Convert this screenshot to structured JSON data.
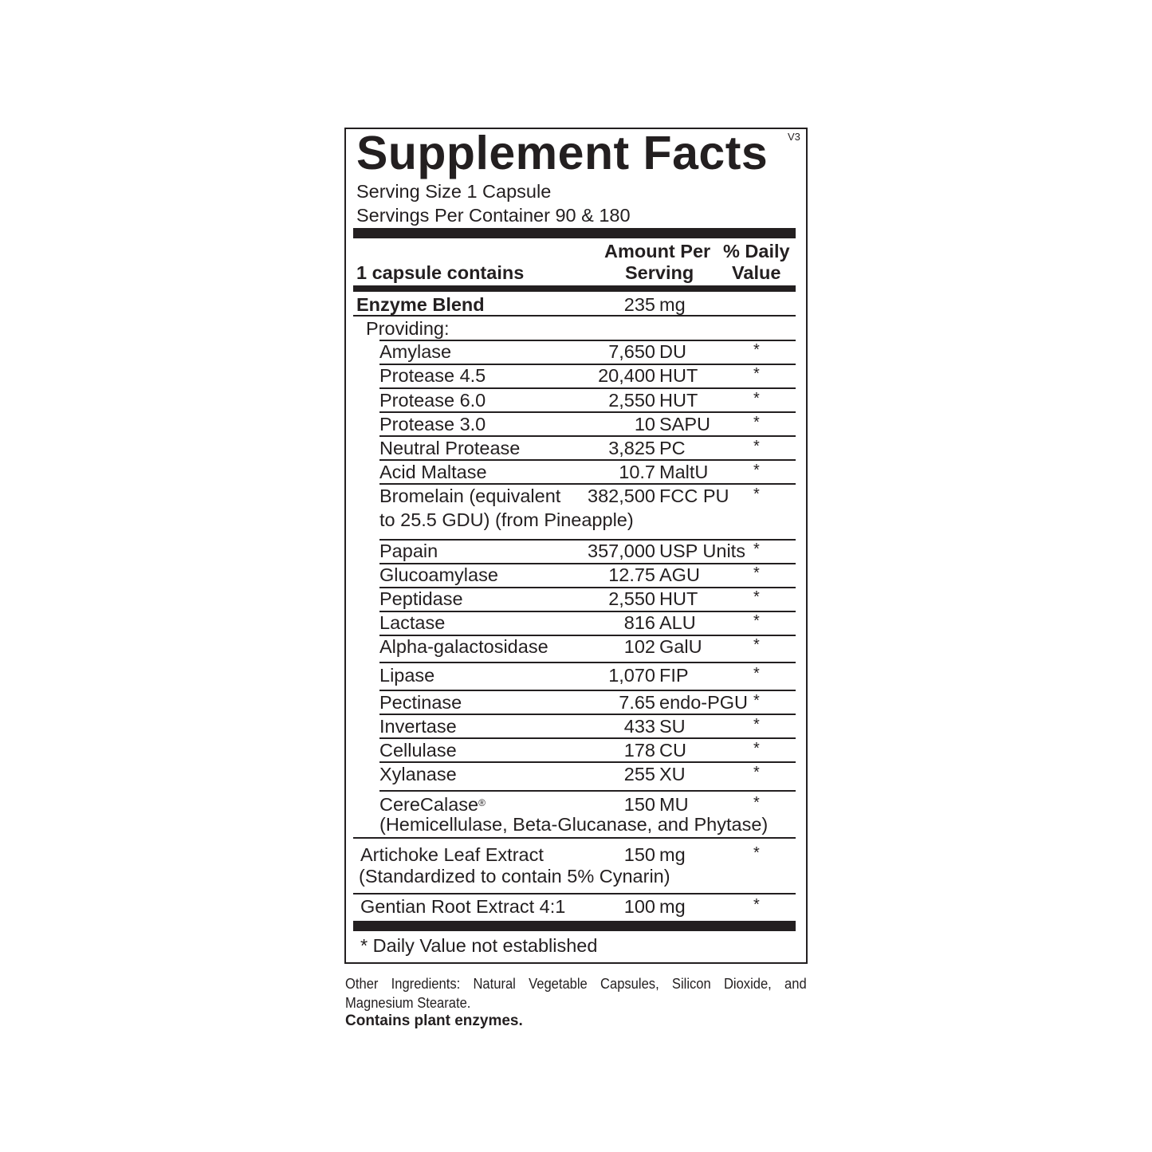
{
  "title": "Supplement Facts",
  "version": "V3",
  "serving_size": "Serving Size 1 Capsule",
  "servings_per_container": "Servings Per Container 90 & 180",
  "header": {
    "left": "1 capsule contains",
    "amount_line1": "Amount Per",
    "amount_line2": "Serving",
    "dv_line1": "% Daily",
    "dv_line2": "Value"
  },
  "blend": {
    "name": "Enzyme Blend",
    "amount": "235",
    "unit": "mg",
    "providing": "Providing:"
  },
  "enzymes": [
    {
      "name": "Amylase",
      "amount": "7,650",
      "unit": "DU",
      "dv": "*"
    },
    {
      "name": "Protease 4.5",
      "amount": "20,400",
      "unit": "HUT",
      "dv": "*"
    },
    {
      "name": "Protease 6.0",
      "amount": "2,550",
      "unit": "HUT",
      "dv": "*"
    },
    {
      "name": "Protease 3.0",
      "amount": "10",
      "unit": "SAPU",
      "dv": "*"
    },
    {
      "name": "Neutral Protease",
      "amount": "3,825",
      "unit": "PC",
      "dv": "*"
    },
    {
      "name": "Acid Maltase",
      "amount": "10.7",
      "unit": "MaltU",
      "dv": "*"
    },
    {
      "name": "Bromelain (equivalent",
      "name2": "to 25.5 GDU) (from Pineapple)",
      "amount": "382,500",
      "unit": "FCC PU",
      "dv": "*"
    },
    {
      "name": "Papain",
      "amount": "357,000",
      "unit": "USP Units",
      "dv": "*"
    },
    {
      "name": "Glucoamylase",
      "amount": "12.75",
      "unit": "AGU",
      "dv": "*"
    },
    {
      "name": "Peptidase",
      "amount": "2,550",
      "unit": "HUT",
      "dv": "*"
    },
    {
      "name": "Lactase",
      "amount": "816",
      "unit": "ALU",
      "dv": "*"
    },
    {
      "name": "Alpha-galactosidase",
      "amount": "102",
      "unit": "GalU",
      "dv": "*"
    },
    {
      "name": "Lipase",
      "amount": "1,070",
      "unit": "FIP",
      "dv": "*"
    },
    {
      "name": "Pectinase",
      "amount": "7.65",
      "unit": "endo-PGU",
      "dv": "*"
    },
    {
      "name": "Invertase",
      "amount": "433",
      "unit": "SU",
      "dv": "*"
    },
    {
      "name": "Cellulase",
      "amount": "178",
      "unit": "CU",
      "dv": "*"
    },
    {
      "name": "Xylanase",
      "amount": "255",
      "unit": "XU",
      "dv": "*"
    },
    {
      "name": "CereCalase",
      "mark": "®",
      "name2": "(Hemicellulase, Beta-Glucanase, and Phytase)",
      "amount": "150",
      "unit": "MU",
      "dv": "*"
    }
  ],
  "others": [
    {
      "name": "Artichoke Leaf Extract",
      "name2": "(Standardized to contain 5% Cynarin)",
      "amount": "150",
      "unit": "mg",
      "dv": "*"
    },
    {
      "name": "Gentian Root Extract 4:1",
      "amount": "100",
      "unit": "mg",
      "dv": "*"
    }
  ],
  "footnote": "* Daily Value not established",
  "other_ingredients": "Other Ingredients: Natural Vegetable Capsules, Silicon Dioxide, and Magnesium Stearate.",
  "contains": "Contains plant enzymes."
}
